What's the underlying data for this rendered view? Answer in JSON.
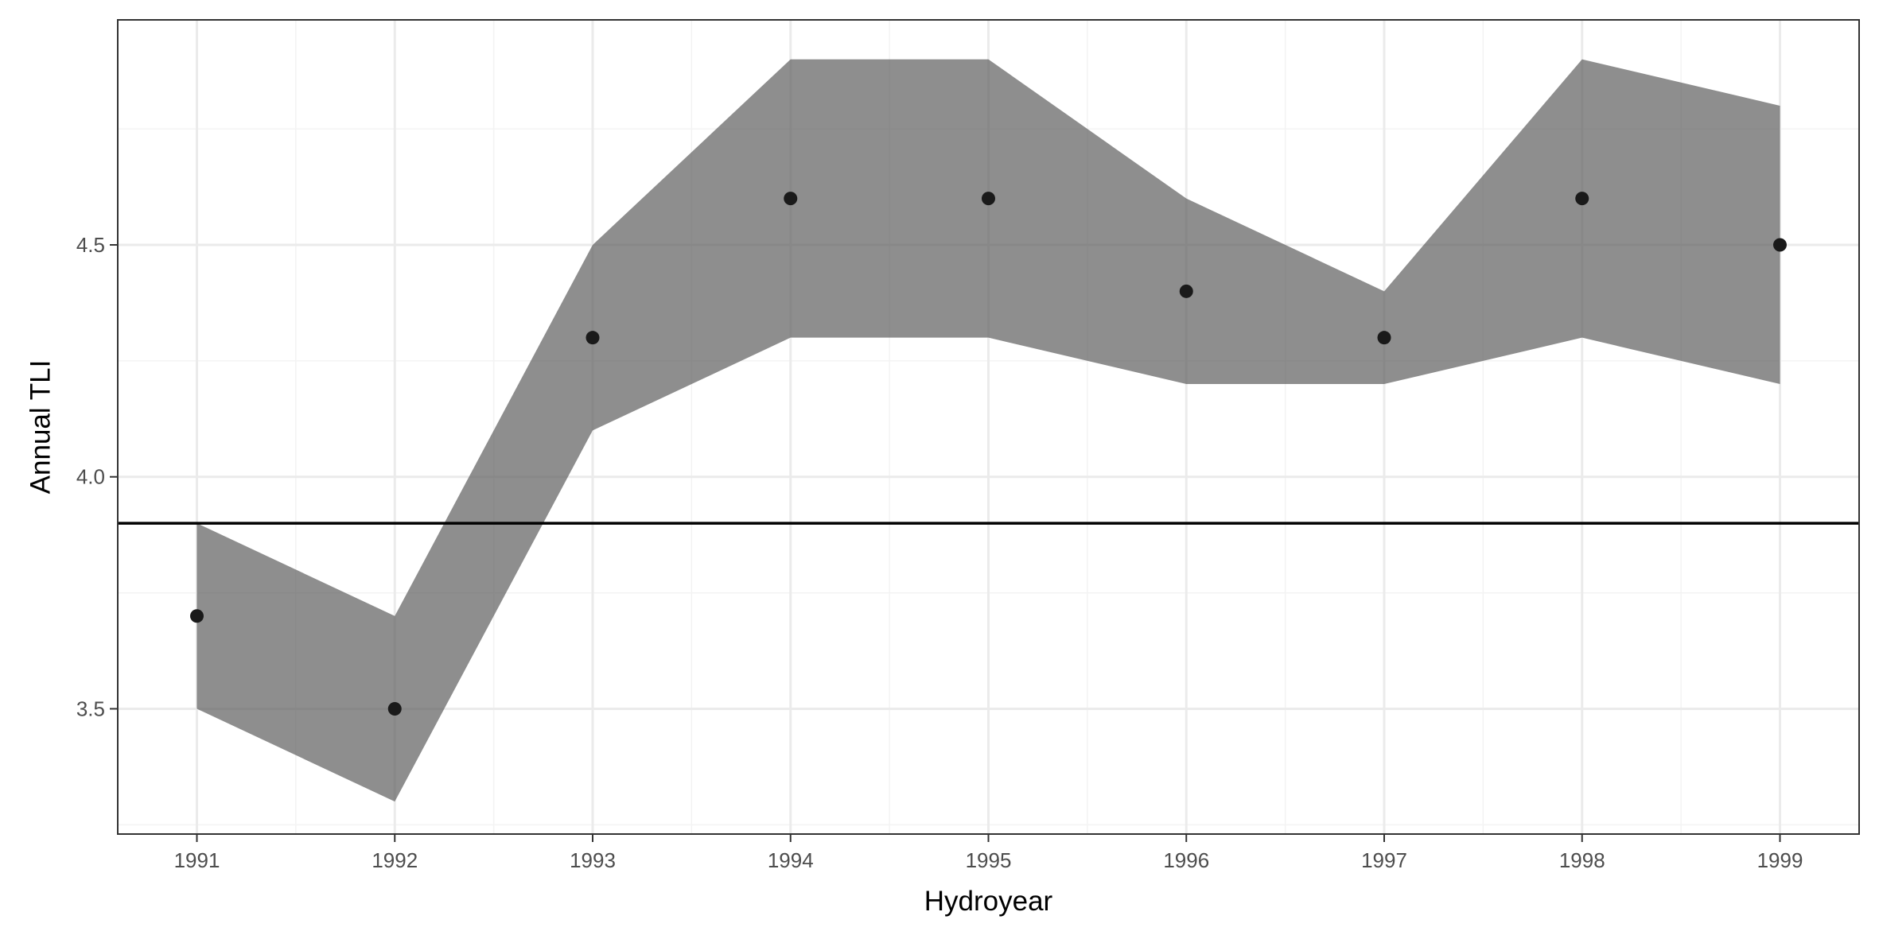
{
  "chart_data": {
    "type": "scatter",
    "xlabel": "Hydroyear",
    "ylabel": "Annual TLI",
    "x": [
      1991,
      1992,
      1993,
      1994,
      1995,
      1996,
      1997,
      1998,
      1999
    ],
    "y": [
      3.7,
      3.5,
      4.3,
      4.6,
      4.6,
      4.4,
      4.3,
      4.6,
      4.5
    ],
    "ribbon_lower": [
      3.5,
      3.3,
      4.1,
      4.3,
      4.3,
      4.2,
      4.2,
      4.3,
      4.2
    ],
    "ribbon_upper": [
      3.9,
      3.7,
      4.5,
      4.9,
      4.9,
      4.6,
      4.4,
      4.9,
      4.8
    ],
    "hline": 3.9,
    "xlim": [
      1990.6,
      1999.4
    ],
    "ylim": [
      3.23,
      4.985
    ],
    "x_ticks": [
      "1991",
      "1992",
      "1993",
      "1994",
      "1995",
      "1996",
      "1997",
      "1998",
      "1999"
    ],
    "y_ticks": [
      "3.5",
      "4.0",
      "4.5"
    ],
    "grid": true,
    "legend": "none",
    "colors": {
      "ribbon": "#595959",
      "points": "#1a1a1a",
      "hline": "#000000",
      "grid_major": "#ebebeb",
      "grid_minor": "#f3f3f3",
      "panel_border": "#333333"
    }
  }
}
